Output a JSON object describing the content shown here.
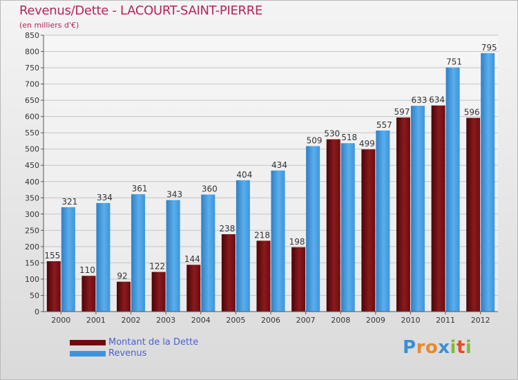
{
  "header": {
    "title": "Revenus/Dette - LACOURT-SAINT-PIERRE",
    "subtitle": "(en milliers d'€)"
  },
  "colors": {
    "dette": "#6e0a10",
    "revenus": "#3d94dc",
    "title": "#b4245a",
    "legend_text": "#4a5fd0"
  },
  "chart_data": {
    "type": "bar",
    "title": "Revenus/Dette - LACOURT-SAINT-PIERRE",
    "subtitle": "(en milliers d'€)",
    "categories": [
      "2000",
      "2001",
      "2002",
      "2003",
      "2004",
      "2005",
      "2006",
      "2007",
      "2008",
      "2009",
      "2010",
      "2011",
      "2012"
    ],
    "series": [
      {
        "name": "Montant de la Dette",
        "values": [
          155,
          110,
          92,
          122,
          144,
          238,
          218,
          198,
          530,
          499,
          597,
          634,
          596
        ]
      },
      {
        "name": "Revenus",
        "values": [
          321,
          334,
          361,
          343,
          360,
          404,
          434,
          509,
          518,
          557,
          633,
          751,
          795
        ]
      }
    ],
    "ylim": [
      0,
      850
    ],
    "yticks": [
      0,
      50,
      100,
      150,
      200,
      250,
      300,
      350,
      400,
      450,
      500,
      550,
      600,
      650,
      700,
      750,
      800,
      850
    ],
    "grid": true,
    "legend": "bottom-left"
  },
  "legend": {
    "items": [
      {
        "label": "Montant de la Dette"
      },
      {
        "label": "Revenus"
      }
    ]
  },
  "logo": {
    "letters": [
      "P",
      "r",
      "o",
      "x",
      "i",
      "t",
      "i"
    ],
    "colors": [
      "#3b8fd6",
      "#e8892a",
      "#e8892a",
      "#3b8fd6",
      "#7cbd3c",
      "#e84a2a",
      "#7cbd3c"
    ]
  }
}
